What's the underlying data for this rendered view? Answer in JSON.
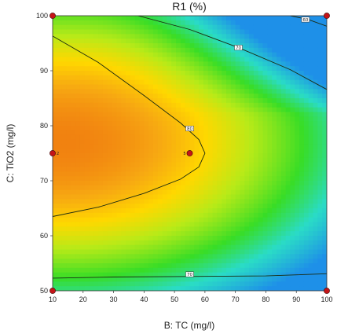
{
  "chart_data": {
    "type": "contour",
    "title": "R1 (%)",
    "xlabel": "B: TC (mg/l)",
    "ylabel": "C: TiO2 (mg/l)",
    "xlim": [
      10,
      100
    ],
    "ylim": [
      50,
      100
    ],
    "xticks": [
      "10",
      "20",
      "30",
      "40",
      "50",
      "60",
      "70",
      "80",
      "90",
      "100"
    ],
    "yticks": [
      "50",
      "60",
      "70",
      "80",
      "90",
      "100"
    ],
    "contours": [
      {
        "level": "80",
        "label_at": [
          55,
          79.5
        ]
      },
      {
        "level": "70",
        "label_at": [
          71,
          94.2
        ]
      },
      {
        "level": "70",
        "label_at": [
          55,
          53
        ]
      },
      {
        "level": "60",
        "label_at": [
          93,
          99.3
        ]
      }
    ],
    "design_points": [
      {
        "x": 10,
        "y": 100,
        "label": ""
      },
      {
        "x": 100,
        "y": 100,
        "label": ""
      },
      {
        "x": 10,
        "y": 75,
        "label": "2"
      },
      {
        "x": 55,
        "y": 75,
        "label": "5"
      },
      {
        "x": 10,
        "y": 50,
        "label": ""
      },
      {
        "x": 100,
        "y": 50,
        "label": ""
      }
    ],
    "colors": {
      "max": "#f07a10",
      "high": "#ffd800",
      "mid": "#b8ea18",
      "low": "#38dd26",
      "min": "#1e90e8",
      "contour_line": "#1a2a10",
      "point_fill": "#c41418"
    }
  }
}
